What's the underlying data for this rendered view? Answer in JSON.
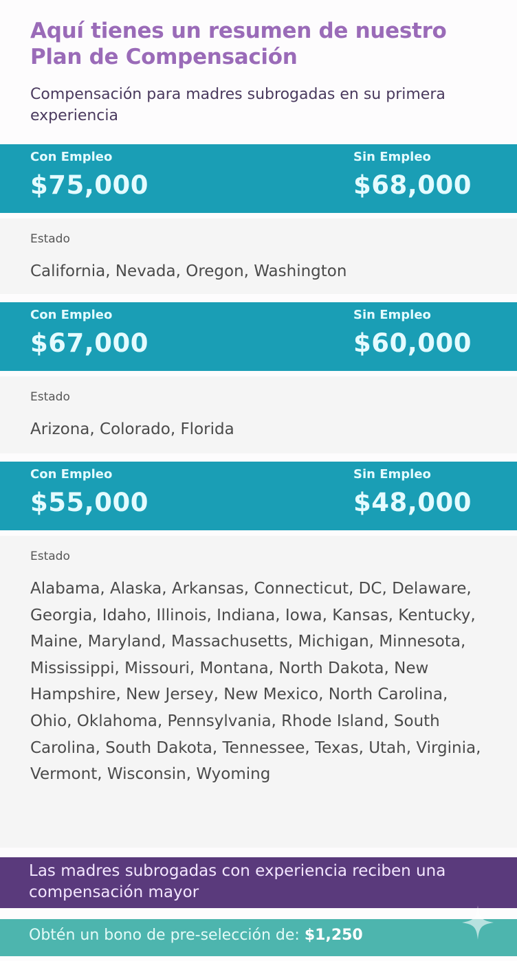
{
  "header": {
    "title": "Aquí tienes un resumen de nuestro Plan de Compensación",
    "subtitle": "Compensación para madres subrogadas en su primera experiencia"
  },
  "tiers": [
    {
      "employed_label": "Con Empleo",
      "employed_amount": "$75,000",
      "unemployed_label": "Sin Empleo",
      "unemployed_amount": "$68,000",
      "state_label": "Estado",
      "states": "California, Nevada, Oregon, Washington"
    },
    {
      "employed_label": "Con Empleo",
      "employed_amount": "$67,000",
      "unemployed_label": "Sin Empleo",
      "unemployed_amount": "$60,000",
      "state_label": "Estado",
      "states": "Arizona, Colorado, Florida"
    },
    {
      "employed_label": "Con Empleo",
      "employed_amount": "$55,000",
      "unemployed_label": "Sin Empleo",
      "unemployed_amount": "$48,000",
      "state_label": "Estado",
      "states": "Alabama, Alaska, Arkansas, Connecticut, DC, Delaware, Georgia, Idaho, Illinois, Indiana, Iowa, Kansas, Kentucky, Maine, Maryland, Massachusetts, Michigan, Minnesota, Mississippi, Missouri, Montana, North Dakota, New Hampshire, New Jersey, New Mexico, North Carolina, Ohio, Oklahoma, Pennsylvania, Rhode Island, South Carolina, South Dakota, Tennessee, Texas, Utah, Virginia, Vermont, Wisconsin, Wyoming"
    }
  ],
  "experienced_note": "Las madres subrogadas con experiencia reciben una compensación mayor",
  "bonus": {
    "text": "Obtén un bono de pre-selección de:",
    "amount": "$1,250"
  },
  "icons": {
    "sparkle": "sparkle-icon"
  },
  "colors": {
    "title": "#9a6bb8",
    "band": "#1a9eb5",
    "purple": "#5a3a7c",
    "teal": "#4db5ae"
  }
}
